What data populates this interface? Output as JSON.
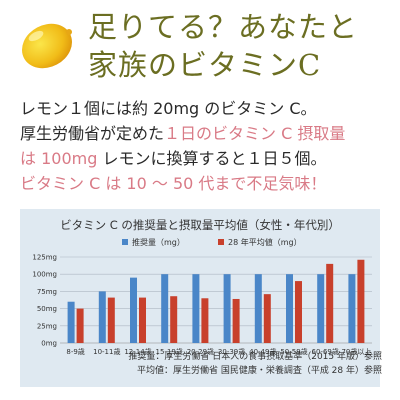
{
  "headline": {
    "line1": "足りてる？あなたと",
    "line2": "家族のビタミンC"
  },
  "body": {
    "line1": "レモン１個には約 20mg のビタミン C。",
    "line2_a": "厚生労働省が定めた",
    "line2_b": "１日のビタミン C 摂取量",
    "line3_a": "は 100mg",
    "line3_b": "レモンに換算すると１日５個。",
    "line4": "ビタミン C は 10 ～ 50 代まで不足気味！"
  },
  "colors": {
    "recommended": "#4a86c8",
    "intake": "#c8402c",
    "headline": "#6b6e22",
    "pink": "#d97a86"
  },
  "chart_data": {
    "type": "bar",
    "title": "ビタミン C の推奨量と摂取量平均値（女性・年代別）",
    "categories": [
      "8-9歳",
      "10-11歳",
      "12-14歳",
      "15-19歳",
      "20-29歳",
      "30-39歳",
      "40-49歳",
      "50-59歳",
      "60-69歳",
      "70歳以上"
    ],
    "series": [
      {
        "name": "推奨量（mg）",
        "values": [
          60,
          75,
          95,
          100,
          100,
          100,
          100,
          100,
          100,
          100
        ]
      },
      {
        "name": "28 年平均値（mg）",
        "values": [
          50,
          66,
          66,
          68,
          65,
          64,
          71,
          90,
          115,
          121
        ]
      }
    ],
    "yticks": [
      "0mg",
      "25mg",
      "50mg",
      "75mg",
      "100mg",
      "125mg"
    ],
    "ylim": [
      0,
      125
    ],
    "grid": true,
    "legend": "top"
  },
  "caption": {
    "line1": "推奨量：厚生労働省 日本人の食事摂取基準（2015 年版）参照",
    "line2": "平均値：厚生労働省 国民健康・栄養調査（平成 28 年）参照"
  }
}
